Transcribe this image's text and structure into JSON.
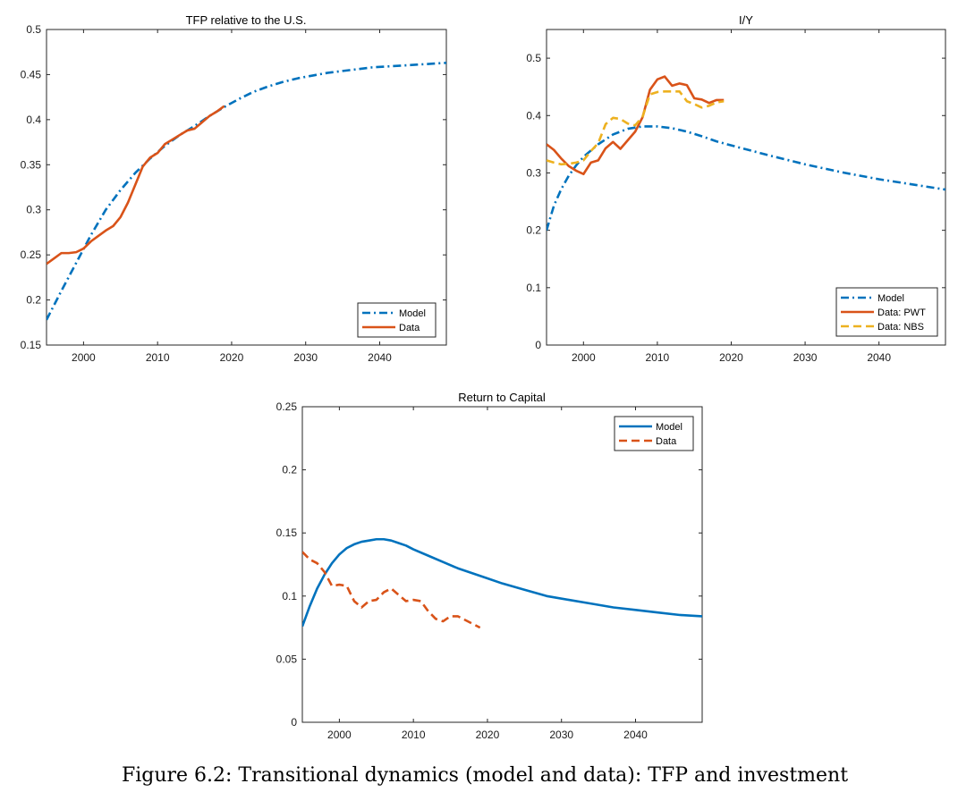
{
  "caption": "Figure 6.2: Transitional dynamics (model and data): TFP and investment",
  "chart_data": [
    {
      "type": "line",
      "title": "TFP relative to the U.S.",
      "xlabel": "",
      "ylabel": "",
      "xlim": [
        1995,
        2049
      ],
      "ylim": [
        0.15,
        0.5
      ],
      "xticks": [
        2000,
        2010,
        2020,
        2030,
        2040
      ],
      "yticks": [
        0.15,
        0.2,
        0.25,
        0.3,
        0.35,
        0.4,
        0.45,
        0.5
      ],
      "ytick_labels": [
        "0.15",
        "0.2",
        "0.25",
        "0.3",
        "0.35",
        "0.4",
        "0.45",
        "0.5"
      ],
      "grid": false,
      "legend_position": "bottom-right",
      "series": [
        {
          "name": "Model",
          "color": "#0072BD",
          "style": "dashdot",
          "x": [
            1995,
            1997,
            1999,
            2001,
            2003,
            2005,
            2007,
            2009,
            2011,
            2013,
            2015,
            2017,
            2019,
            2021,
            2023,
            2025,
            2027,
            2029,
            2031,
            2033,
            2035,
            2037,
            2039,
            2041,
            2043,
            2045,
            2047,
            2049
          ],
          "y": [
            0.178,
            0.21,
            0.241,
            0.272,
            0.3,
            0.322,
            0.341,
            0.357,
            0.371,
            0.383,
            0.393,
            0.404,
            0.414,
            0.423,
            0.431,
            0.437,
            0.442,
            0.446,
            0.449,
            0.452,
            0.454,
            0.456,
            0.458,
            0.459,
            0.46,
            0.461,
            0.462,
            0.463
          ]
        },
        {
          "name": "Data",
          "color": "#D95319",
          "style": "solid",
          "x": [
            1995,
            1996,
            1997,
            1998,
            1999,
            2000,
            2001,
            2002,
            2003,
            2004,
            2005,
            2006,
            2007,
            2008,
            2009,
            2010,
            2011,
            2012,
            2013,
            2014,
            2015,
            2016,
            2017,
            2018,
            2019
          ],
          "y": [
            0.24,
            0.246,
            0.252,
            0.252,
            0.253,
            0.257,
            0.265,
            0.271,
            0.277,
            0.282,
            0.292,
            0.308,
            0.328,
            0.348,
            0.358,
            0.363,
            0.373,
            0.378,
            0.383,
            0.388,
            0.39,
            0.397,
            0.404,
            0.409,
            0.415
          ]
        }
      ]
    },
    {
      "type": "line",
      "title": "I/Y",
      "xlabel": "",
      "ylabel": "",
      "xlim": [
        1995,
        2049
      ],
      "ylim": [
        0,
        0.55
      ],
      "xticks": [
        2000,
        2010,
        2020,
        2030,
        2040
      ],
      "yticks": [
        0,
        0.1,
        0.2,
        0.3,
        0.4,
        0.5
      ],
      "ytick_labels": [
        "0",
        "0.1",
        "0.2",
        "0.3",
        "0.4",
        "0.5"
      ],
      "grid": false,
      "legend_position": "bottom-right",
      "series": [
        {
          "name": "Model",
          "color": "#0072BD",
          "style": "dashdot",
          "x": [
            1995,
            1996,
            1997,
            1998,
            1999,
            2000,
            2002,
            2004,
            2006,
            2008,
            2010,
            2012,
            2014,
            2016,
            2018,
            2020,
            2025,
            2030,
            2035,
            2040,
            2045,
            2049
          ],
          "y": [
            0.2,
            0.243,
            0.272,
            0.295,
            0.313,
            0.328,
            0.35,
            0.367,
            0.377,
            0.381,
            0.381,
            0.378,
            0.372,
            0.364,
            0.355,
            0.348,
            0.331,
            0.315,
            0.301,
            0.289,
            0.279,
            0.271
          ]
        },
        {
          "name": "Data: PWT",
          "color": "#D95319",
          "style": "solid",
          "x": [
            1995,
            1996,
            1997,
            1998,
            1999,
            2000,
            2001,
            2002,
            2003,
            2004,
            2005,
            2006,
            2007,
            2008,
            2009,
            2010,
            2011,
            2012,
            2013,
            2014,
            2015,
            2016,
            2017,
            2018,
            2019
          ],
          "y": [
            0.35,
            0.34,
            0.325,
            0.312,
            0.304,
            0.298,
            0.318,
            0.322,
            0.343,
            0.354,
            0.342,
            0.357,
            0.372,
            0.397,
            0.445,
            0.463,
            0.468,
            0.452,
            0.456,
            0.453,
            0.43,
            0.428,
            0.422,
            0.427,
            0.427
          ]
        },
        {
          "name": "Data: NBS",
          "color": "#EDB120",
          "style": "dashed",
          "x": [
            1995,
            1996,
            1997,
            1998,
            1999,
            2000,
            2001,
            2002,
            2003,
            2004,
            2005,
            2006,
            2007,
            2008,
            2009,
            2010,
            2011,
            2012,
            2013,
            2014,
            2015,
            2016,
            2017,
            2018,
            2019
          ],
          "y": [
            0.322,
            0.318,
            0.315,
            0.316,
            0.318,
            0.322,
            0.338,
            0.352,
            0.385,
            0.396,
            0.394,
            0.386,
            0.383,
            0.398,
            0.437,
            0.441,
            0.442,
            0.442,
            0.442,
            0.425,
            0.42,
            0.414,
            0.417,
            0.423,
            0.425
          ]
        }
      ]
    },
    {
      "type": "line",
      "title": "Return to Capital",
      "xlabel": "",
      "ylabel": "",
      "xlim": [
        1995,
        2049
      ],
      "ylim": [
        0,
        0.25
      ],
      "xticks": [
        2000,
        2010,
        2020,
        2030,
        2040
      ],
      "yticks": [
        0,
        0.05,
        0.1,
        0.15,
        0.2,
        0.25
      ],
      "ytick_labels": [
        "0",
        "0.05",
        "0.1",
        "0.15",
        "0.2",
        "0.25"
      ],
      "grid": false,
      "legend_position": "top-right",
      "series": [
        {
          "name": "Model",
          "color": "#0072BD",
          "style": "solid",
          "x": [
            1995,
            1996,
            1997,
            1998,
            1999,
            2000,
            2001,
            2002,
            2003,
            2004,
            2005,
            2006,
            2007,
            2008,
            2009,
            2010,
            2012,
            2014,
            2016,
            2018,
            2020,
            2022,
            2025,
            2028,
            2031,
            2034,
            2037,
            2040,
            2043,
            2046,
            2049
          ],
          "y": [
            0.076,
            0.092,
            0.106,
            0.117,
            0.126,
            0.133,
            0.138,
            0.141,
            0.143,
            0.144,
            0.145,
            0.145,
            0.144,
            0.142,
            0.14,
            0.137,
            0.132,
            0.127,
            0.122,
            0.118,
            0.114,
            0.11,
            0.105,
            0.1,
            0.097,
            0.094,
            0.091,
            0.089,
            0.087,
            0.085,
            0.084
          ]
        },
        {
          "name": "Data",
          "color": "#D95319",
          "style": "dashed",
          "x": [
            1995,
            1996,
            1997,
            1998,
            1999,
            2000,
            2001,
            2002,
            2003,
            2004,
            2005,
            2006,
            2007,
            2008,
            2009,
            2010,
            2011,
            2012,
            2013,
            2014,
            2015,
            2016,
            2017,
            2018,
            2019
          ],
          "y": [
            0.135,
            0.129,
            0.126,
            0.119,
            0.108,
            0.109,
            0.108,
            0.096,
            0.091,
            0.096,
            0.097,
            0.103,
            0.106,
            0.101,
            0.096,
            0.097,
            0.096,
            0.088,
            0.082,
            0.08,
            0.084,
            0.084,
            0.081,
            0.078,
            0.075
          ]
        }
      ]
    }
  ]
}
